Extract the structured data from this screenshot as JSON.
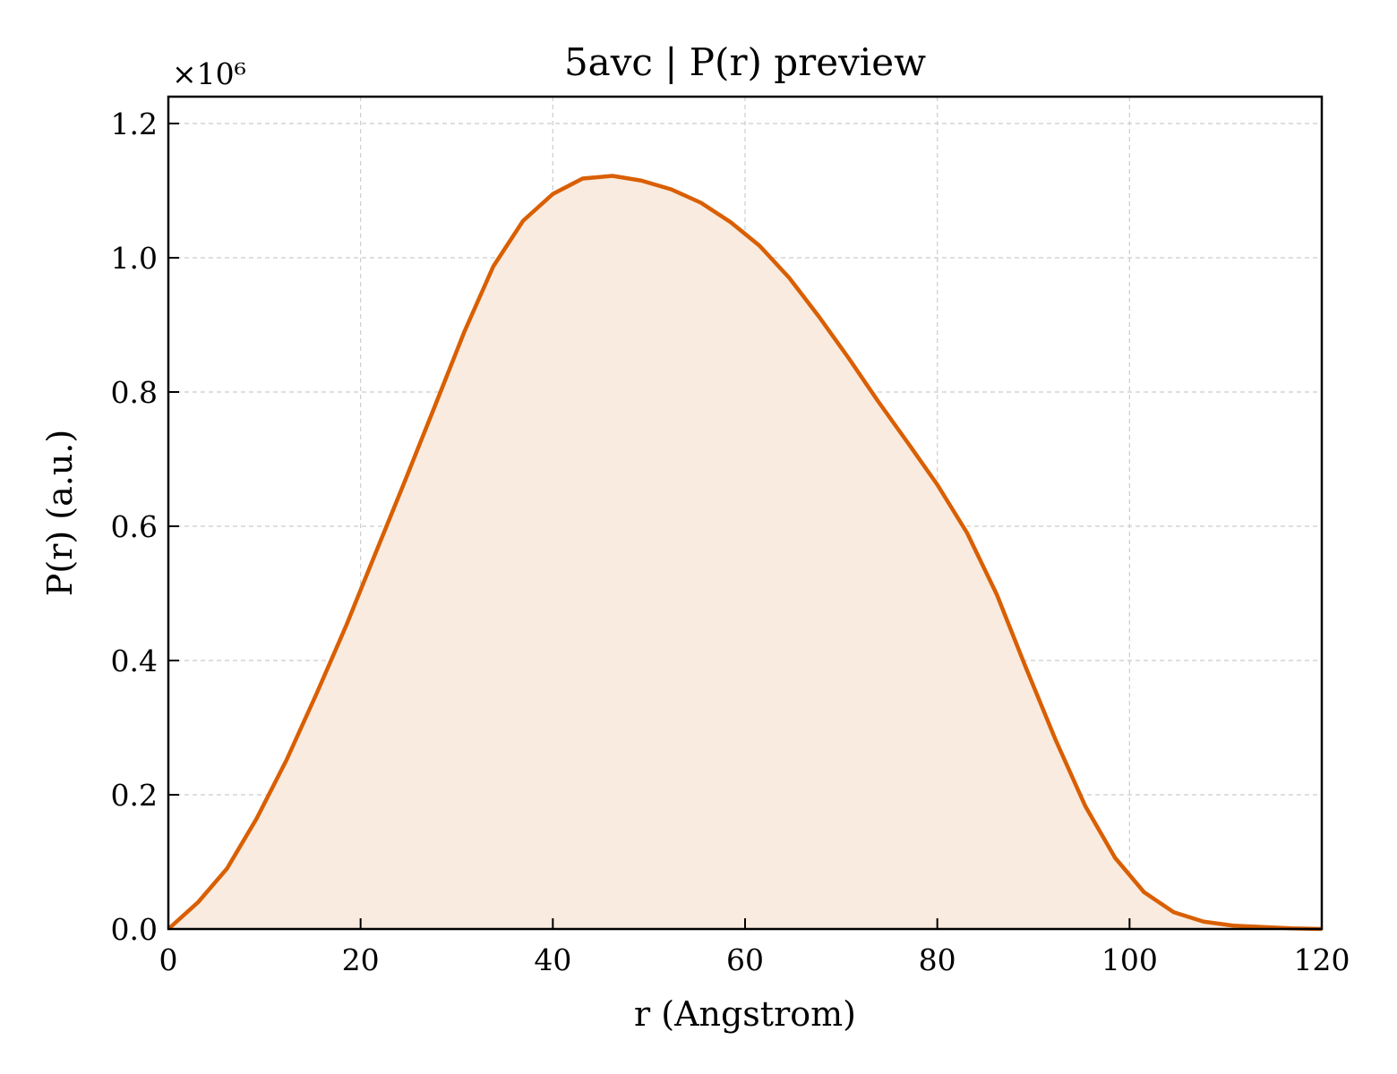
{
  "chart_data": {
    "type": "area",
    "title": "5avc | P(r) preview",
    "xlabel": "r (Angstrom)",
    "ylabel": "P(r) (a.u.)",
    "y_multiplier_label": "×10⁶",
    "xlim": [
      0,
      120
    ],
    "ylim": [
      0,
      1.24
    ],
    "x_ticks": [
      0,
      20,
      40,
      60,
      80,
      100,
      120
    ],
    "x_tick_labels": [
      "0",
      "20",
      "40",
      "60",
      "80",
      "100",
      "120"
    ],
    "y_ticks": [
      0,
      0.2,
      0.4,
      0.6,
      0.8,
      1.0,
      1.2
    ],
    "y_tick_labels": [
      "0.0",
      "0.2",
      "0.4",
      "0.6",
      "0.8",
      "1.0",
      "1.2"
    ],
    "grid": true,
    "line_color": "#d95f02",
    "fill_color": "#f9ebe0",
    "series": [
      {
        "x": [
          0,
          3.1,
          6.1,
          9.2,
          12.3,
          15.4,
          18.5,
          21.5,
          24.6,
          27.7,
          30.8,
          33.8,
          36.9,
          40.0,
          43.1,
          46.2,
          49.2,
          52.3,
          55.4,
          58.5,
          61.5,
          64.6,
          67.7,
          70.8,
          73.8,
          76.9,
          80.0,
          83.1,
          86.2,
          89.2,
          92.3,
          95.4,
          98.5,
          101.5,
          104.6,
          107.7,
          110.8,
          113.8,
          116.9,
          120.0
        ],
        "values": [
          0.0,
          0.04,
          0.09,
          0.165,
          0.252,
          0.35,
          0.452,
          0.558,
          0.667,
          0.778,
          0.89,
          0.987,
          1.055,
          1.095,
          1.118,
          1.122,
          1.115,
          1.102,
          1.082,
          1.053,
          1.018,
          0.97,
          0.912,
          0.85,
          0.787,
          0.725,
          0.662,
          0.59,
          0.498,
          0.39,
          0.282,
          0.183,
          0.106,
          0.055,
          0.025,
          0.011,
          0.005,
          0.003,
          0.001,
          0.0
        ]
      }
    ]
  }
}
